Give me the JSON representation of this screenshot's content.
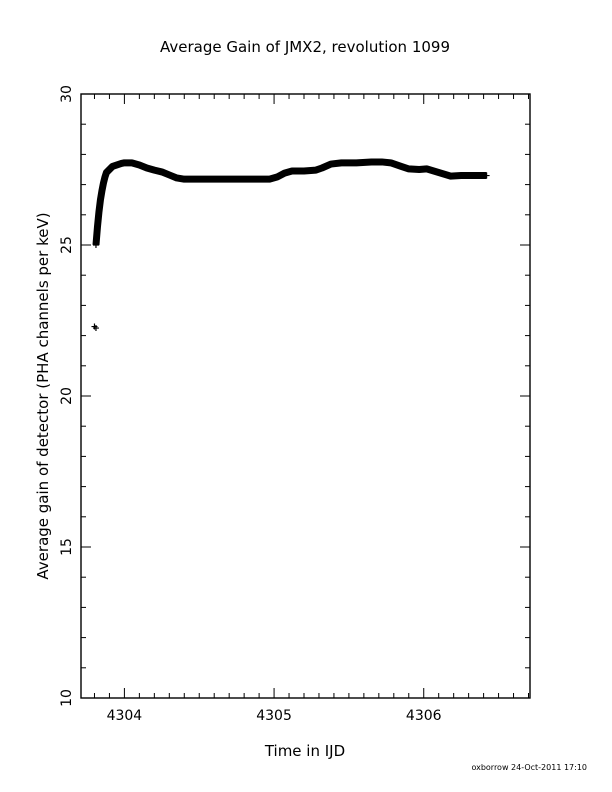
{
  "chart_data": {
    "type": "scatter",
    "title": "Average Gain of JMX2, revolution 1099",
    "xlabel": "Time in IJD",
    "ylabel": "Average gain of detector (PHA channels per keV)",
    "xlim": [
      4303.71,
      4306.71
    ],
    "ylim": [
      10,
      30
    ],
    "xticks_major": [
      4304,
      4305,
      4306
    ],
    "xtick_labels": [
      "4304",
      "4305",
      "4306"
    ],
    "yticks_major": [
      10,
      15,
      20,
      25,
      30
    ],
    "ytick_labels": [
      "10",
      "15",
      "20",
      "25",
      "30"
    ],
    "grid": false,
    "marker": "plus",
    "series": [
      {
        "x": [
          4303.81,
          4303.82,
          4303.83,
          4303.84,
          4303.85,
          4303.86,
          4303.87,
          4303.88,
          4303.9,
          4303.92,
          4303.95,
          4303.98,
          4304.0,
          4304.05,
          4304.1,
          4304.15,
          4304.2,
          4304.25,
          4304.3,
          4304.35,
          4304.4,
          4304.45,
          4304.5,
          4304.6,
          4304.7,
          4304.8,
          4304.9,
          4304.97,
          4305.02,
          4305.07,
          4305.12,
          4305.2,
          4305.28,
          4305.32,
          4305.38,
          4305.45,
          4305.55,
          4305.65,
          4305.72,
          4305.78,
          4305.85,
          4305.9,
          4305.97,
          4306.02,
          4306.1,
          4306.18,
          4306.25,
          4306.35,
          4306.42
        ],
        "y": [
          25.0,
          25.6,
          26.1,
          26.5,
          26.8,
          27.05,
          27.25,
          27.4,
          27.5,
          27.6,
          27.65,
          27.7,
          27.72,
          27.72,
          27.65,
          27.55,
          27.48,
          27.42,
          27.32,
          27.22,
          27.18,
          27.18,
          27.18,
          27.18,
          27.18,
          27.18,
          27.18,
          27.18,
          27.25,
          27.38,
          27.45,
          27.45,
          27.48,
          27.55,
          27.68,
          27.72,
          27.72,
          27.75,
          27.75,
          27.72,
          27.6,
          27.52,
          27.5,
          27.52,
          27.4,
          27.28,
          27.3,
          27.3,
          27.3
        ]
      },
      {
        "x": [
          4303.8,
          4303.81
        ],
        "y": [
          22.3,
          22.25
        ]
      }
    ]
  },
  "footer": {
    "stamp": "oxborrow 24-Oct-2011 17:10"
  }
}
